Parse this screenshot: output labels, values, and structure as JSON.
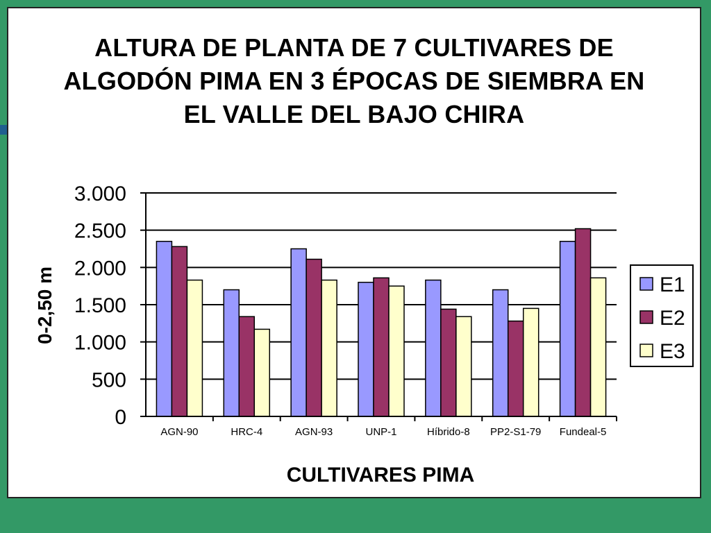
{
  "chart_data": {
    "type": "bar",
    "title": "ALTURA DE PLANTA DE 7 CULTIVARES DE ALGODÓN PIMA EN 3 ÉPOCAS DE SIEMBRA EN EL VALLE DEL BAJO CHIRA",
    "xlabel": "CULTIVARES  PIMA",
    "ylabel": "0-2,50 m",
    "ylim": [
      0,
      3000
    ],
    "yticks": [
      {
        "value": 0,
        "label": "0"
      },
      {
        "value": 500,
        "label": "500"
      },
      {
        "value": 1000,
        "label": "1.000"
      },
      {
        "value": 1500,
        "label": "1.500"
      },
      {
        "value": 2000,
        "label": "2.000"
      },
      {
        "value": 2500,
        "label": "2.500"
      },
      {
        "value": 3000,
        "label": "3.000"
      }
    ],
    "categories": [
      "AGN-90",
      "HRC-4",
      "AGN-93",
      "UNP-1",
      "Híbrido-8",
      "PP2-S1-79",
      "Fundeal-5"
    ],
    "series": [
      {
        "name": "E1",
        "color": "#9999ff",
        "values": [
          2350,
          1700,
          2250,
          1800,
          1830,
          1700,
          2350
        ]
      },
      {
        "name": "E2",
        "color": "#993366",
        "values": [
          2280,
          1340,
          2110,
          1860,
          1440,
          1280,
          2520
        ]
      },
      {
        "name": "E3",
        "color": "#ffffcc",
        "values": [
          1830,
          1170,
          1830,
          1750,
          1340,
          1450,
          1860
        ]
      }
    ],
    "grid": true,
    "legend": "right"
  }
}
